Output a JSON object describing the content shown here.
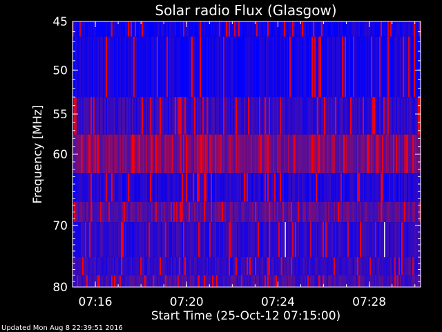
{
  "chart_data": {
    "type": "heatmap",
    "title": "Solar radio Flux (Glasgow)",
    "xlabel": "Start Time (25-Oct-12 07:15:00)",
    "ylabel": "Frequency [MHz]",
    "xlim": [
      "07:15:00",
      "07:30:15"
    ],
    "ylim": [
      45,
      80
    ],
    "x_ticks": [
      "07:16",
      "07:20",
      "07:24",
      "07:28"
    ],
    "y_ticks": [
      "45",
      "50",
      "55",
      "60",
      "70",
      "80"
    ],
    "colors": {
      "background": "#000000",
      "low": "#0000ff",
      "mid": "#5010a0",
      "high": "#ff0000",
      "peak": "#ffffff"
    },
    "bands": [
      {
        "f_from": 45,
        "f_to": 46.5,
        "intensity": 0.1
      },
      {
        "f_from": 46.5,
        "f_to": 53,
        "intensity": 0.12
      },
      {
        "f_from": 53,
        "f_to": 57.5,
        "intensity": 0.3
      },
      {
        "f_from": 57.5,
        "f_to": 62.5,
        "intensity": 0.62
      },
      {
        "f_from": 62.5,
        "f_to": 66.5,
        "intensity": 0.2
      },
      {
        "f_from": 66.5,
        "f_to": 69.5,
        "intensity": 0.5
      },
      {
        "f_from": 69.5,
        "f_to": 75,
        "intensity": 0.28
      },
      {
        "f_from": 75,
        "f_to": 78,
        "intensity": 0.32
      },
      {
        "f_from": 78,
        "f_to": 80,
        "intensity": 0.4
      }
    ]
  },
  "footer": {
    "updated": "Updated Mon Aug  8 22:39:51 2016"
  }
}
